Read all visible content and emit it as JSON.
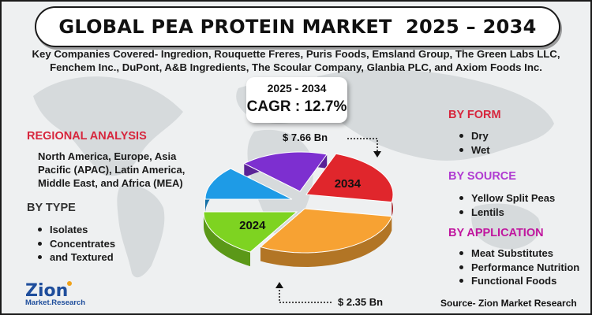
{
  "title": "GLOBAL PEA PROTEIN MARKET  2025 – 2034",
  "companies": {
    "line1": "Key Companies Covered- Ingredion, Rouquette Freres, Puris Foods, Emsland Group, The Green Labs LLC,",
    "line2": "Fenchem Inc., DuPont, A&B Ingredients, The Scoular Company, Glanbia PLC, and Axiom Foods Inc."
  },
  "cagr": {
    "period": "2025 - 2034",
    "label": "CAGR : 12.7%"
  },
  "regional": {
    "heading": "REGIONAL ANALYSIS",
    "lines": [
      "North America, Europe, Asia",
      "Pacific (APAC), Latin America,",
      "Middle East, and Africa (MEA)"
    ]
  },
  "by_type": {
    "heading": "BY TYPE",
    "items": [
      "Isolates",
      "Concentrates",
      "and Textured"
    ]
  },
  "by_form": {
    "heading": "BY FORM",
    "items": [
      "Dry",
      "Wet"
    ]
  },
  "by_source": {
    "heading": "BY SOURCE",
    "items": [
      "Yellow Split Peas",
      "Lentils"
    ]
  },
  "by_application": {
    "heading": "BY APPLICATION",
    "items": [
      "Meat Substitutes",
      "Performance Nutrition",
      "Functional Foods"
    ]
  },
  "source": "Source- Zion Market Research",
  "logo": {
    "name": "Zion",
    "sub": "Market.Research"
  },
  "colors": {
    "green": "#7ed321",
    "orange": "#f7a233",
    "red": "#e0262c",
    "purple": "#7d2fd0",
    "blue": "#1e9be6",
    "heading_red": "#d7263d",
    "heading_purple": "#b03bd1",
    "heading_magenta": "#c0169e"
  },
  "chart_data": {
    "type": "pie",
    "title": "",
    "start_label": "2024",
    "end_label": "2034",
    "start_value_label": "$ 2.35 Bn",
    "end_value_label": "$ 7.66 Bn",
    "values": [
      2.35,
      7.66
    ],
    "unit": "USD Bn",
    "slices": [
      {
        "label": "2024",
        "color": "#7ed321"
      },
      {
        "label": "",
        "color": "#f7a233"
      },
      {
        "label": "2034",
        "color": "#e0262c"
      },
      {
        "label": "",
        "color": "#7d2fd0"
      },
      {
        "label": "",
        "color": "#1e9be6"
      }
    ]
  }
}
